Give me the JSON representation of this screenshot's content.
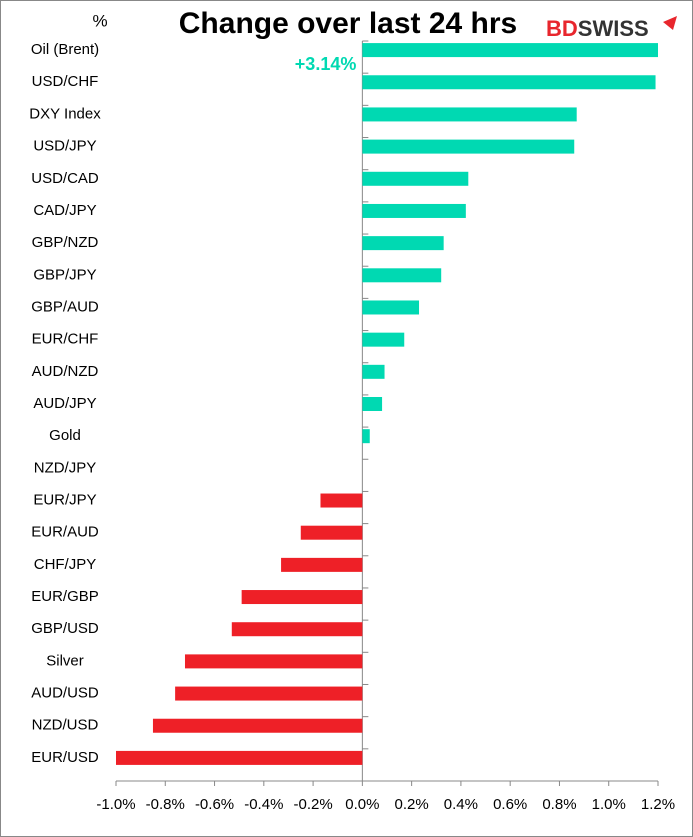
{
  "chart_data": {
    "type": "barh",
    "title": "Change over last 24 hrs",
    "y_axis_label": "%",
    "logo": {
      "part1": "BD",
      "part2": "SWISS"
    },
    "categories": [
      "Oil (Brent)",
      "USD/CHF",
      "DXY Index",
      "USD/JPY",
      "USD/CAD",
      "CAD/JPY",
      "GBP/NZD",
      "GBP/JPY",
      "GBP/AUD",
      "EUR/CHF",
      "AUD/NZD",
      "AUD/JPY",
      "Gold",
      "NZD/JPY",
      "EUR/JPY",
      "EUR/AUD",
      "CHF/JPY",
      "EUR/GBP",
      "GBP/USD",
      "Silver",
      "AUD/USD",
      "NZD/USD",
      "EUR/USD"
    ],
    "values": [
      3.14,
      1.19,
      0.87,
      0.86,
      0.43,
      0.42,
      0.33,
      0.32,
      0.23,
      0.17,
      0.09,
      0.08,
      0.03,
      0,
      -0.17,
      -0.25,
      -0.33,
      -0.49,
      -0.53,
      -0.72,
      -0.76,
      -0.85,
      -1.0
    ],
    "value_labels": [
      "+3.14%",
      null,
      null,
      null,
      null,
      null,
      null,
      null,
      null,
      null,
      null,
      null,
      null,
      null,
      null,
      null,
      null,
      null,
      null,
      null,
      null,
      null,
      null
    ],
    "color_positive": "#00d9b2",
    "color_negative": "#ee2027",
    "xlim": [
      -1.0,
      1.2
    ],
    "xticks": [
      {
        "value": -1.0,
        "label": "-1.0%"
      },
      {
        "value": -0.8,
        "label": "-0.8%"
      },
      {
        "value": -0.6,
        "label": "-0.6%"
      },
      {
        "value": -0.4,
        "label": "-0.4%"
      },
      {
        "value": -0.2,
        "label": "-0.2%"
      },
      {
        "value": 0,
        "label": "0.0%"
      },
      {
        "value": 0.2,
        "label": "0.2%"
      },
      {
        "value": 0.4,
        "label": "0.4%"
      },
      {
        "value": 0.6,
        "label": "0.6%"
      },
      {
        "value": 0.8,
        "label": "0.8%"
      },
      {
        "value": 1.0,
        "label": "1.0%"
      },
      {
        "value": 1.2,
        "label": "1.2%"
      }
    ]
  }
}
